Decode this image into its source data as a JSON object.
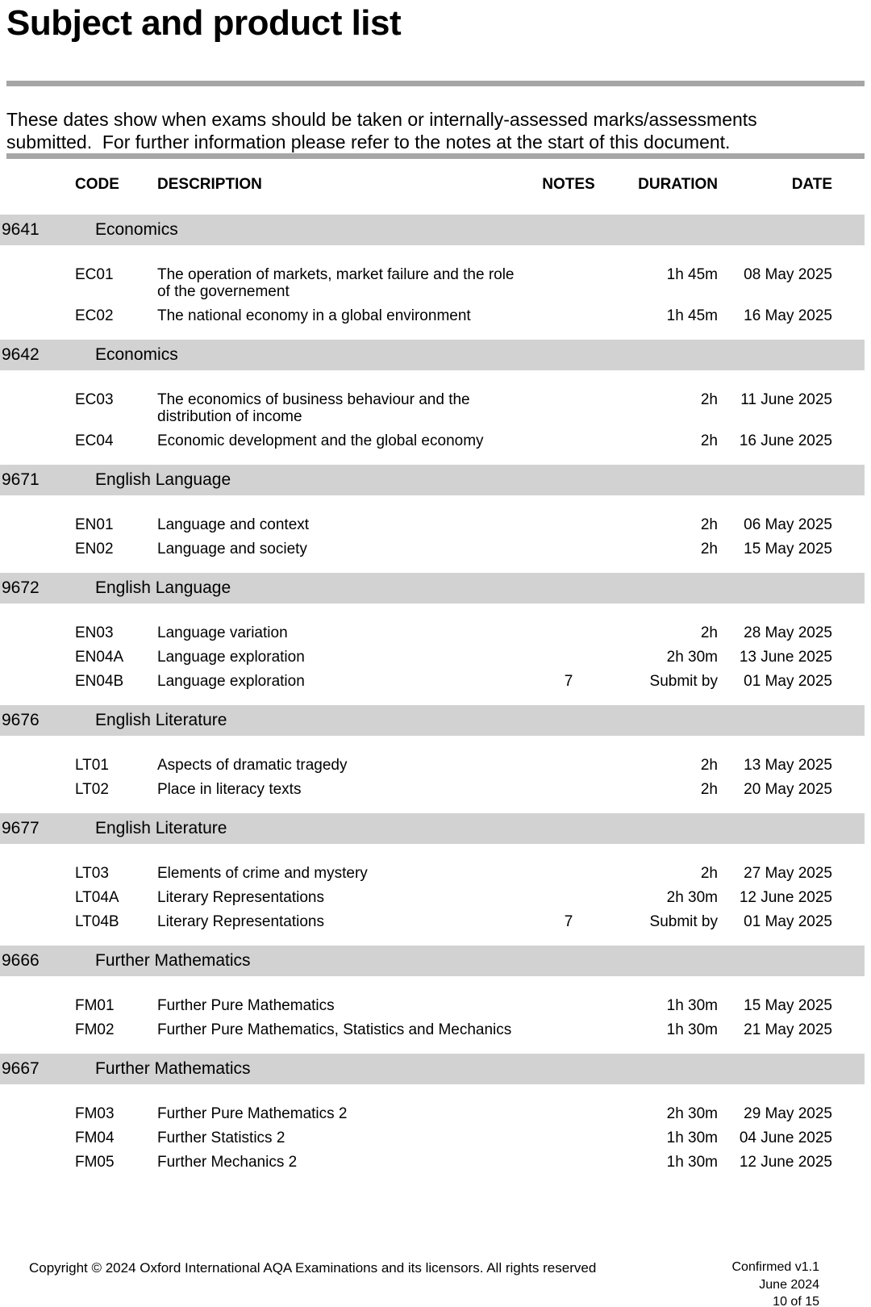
{
  "page": {
    "title": "Subject and product list",
    "intro": "These dates show when exams should be taken or internally-assessed marks/assessments submitted.  For further information please refer to the notes at the start of this document."
  },
  "colors": {
    "section_band": "#d2d2d2",
    "rule": "#a6a6a6",
    "text": "#000000",
    "background": "#ffffff"
  },
  "table": {
    "headers": {
      "code": "CODE",
      "description": "DESCRIPTION",
      "notes": "NOTES",
      "duration": "DURATION",
      "date": "DATE"
    },
    "sections": [
      {
        "number": "9641",
        "subject": "Economics",
        "rows": [
          {
            "code": "EC01",
            "description": "The operation of markets, market failure and the role of the governement",
            "notes": "",
            "duration": "1h 45m",
            "date": "08 May 2025"
          },
          {
            "code": "EC02",
            "description": "The national economy in a global environment",
            "notes": "",
            "duration": "1h 45m",
            "date": "16 May 2025"
          }
        ]
      },
      {
        "number": "9642",
        "subject": "Economics",
        "rows": [
          {
            "code": "EC03",
            "description": "The economics of business behaviour and the distribution of income",
            "notes": "",
            "duration": "2h",
            "date": "11 June 2025"
          },
          {
            "code": "EC04",
            "description": "Economic development and the global economy",
            "notes": "",
            "duration": "2h",
            "date": "16 June 2025"
          }
        ]
      },
      {
        "number": "9671",
        "subject": "English Language",
        "rows": [
          {
            "code": "EN01",
            "description": "Language and context",
            "notes": "",
            "duration": "2h",
            "date": "06 May 2025"
          },
          {
            "code": "EN02",
            "description": "Language and society",
            "notes": "",
            "duration": "2h",
            "date": "15 May 2025"
          }
        ]
      },
      {
        "number": "9672",
        "subject": "English Language",
        "rows": [
          {
            "code": "EN03",
            "description": "Language variation",
            "notes": "",
            "duration": "2h",
            "date": "28 May 2025"
          },
          {
            "code": "EN04A",
            "description": "Language exploration",
            "notes": "",
            "duration": "2h 30m",
            "date": "13 June 2025"
          },
          {
            "code": "EN04B",
            "description": "Language exploration",
            "notes": "7",
            "duration": "Submit by",
            "date": "01 May 2025"
          }
        ]
      },
      {
        "number": "9676",
        "subject": "English Literature",
        "rows": [
          {
            "code": "LT01",
            "description": "Aspects of dramatic tragedy",
            "notes": "",
            "duration": "2h",
            "date": "13 May 2025"
          },
          {
            "code": "LT02",
            "description": "Place in literacy texts",
            "notes": "",
            "duration": "2h",
            "date": "20 May 2025"
          }
        ]
      },
      {
        "number": "9677",
        "subject": "English Literature",
        "rows": [
          {
            "code": "LT03",
            "description": "Elements of crime and mystery",
            "notes": "",
            "duration": "2h",
            "date": "27 May 2025"
          },
          {
            "code": "LT04A",
            "description": "Literary Representations",
            "notes": "",
            "duration": "2h 30m",
            "date": "12 June 2025"
          },
          {
            "code": "LT04B",
            "description": "Literary Representations",
            "notes": "7",
            "duration": "Submit by",
            "date": "01 May 2025"
          }
        ]
      },
      {
        "number": "9666",
        "subject": "Further Mathematics",
        "rows": [
          {
            "code": "FM01",
            "description": "Further Pure Mathematics",
            "notes": "",
            "duration": "1h 30m",
            "date": "15 May 2025"
          },
          {
            "code": "FM02",
            "description": "Further Pure Mathematics, Statistics and Mechanics",
            "notes": "",
            "duration": "1h 30m",
            "date": "21 May 2025"
          }
        ]
      },
      {
        "number": "9667",
        "subject": "Further Mathematics",
        "rows": [
          {
            "code": "FM03",
            "description": "Further Pure Mathematics 2",
            "notes": "",
            "duration": "2h 30m",
            "date": "29 May 2025"
          },
          {
            "code": "FM04",
            "description": "Further Statistics 2",
            "notes": "",
            "duration": "1h 30m",
            "date": "04 June 2025"
          },
          {
            "code": "FM05",
            "description": "Further Mechanics 2",
            "notes": "",
            "duration": "1h 30m",
            "date": "12 June 2025"
          }
        ]
      }
    ]
  },
  "footer": {
    "copyright": "Copyright © 2024 Oxford International AQA Examinations and its licensors. All rights reserved",
    "version": "Confirmed v1.1",
    "date": "June 2024",
    "page_number": "10 of 15"
  }
}
